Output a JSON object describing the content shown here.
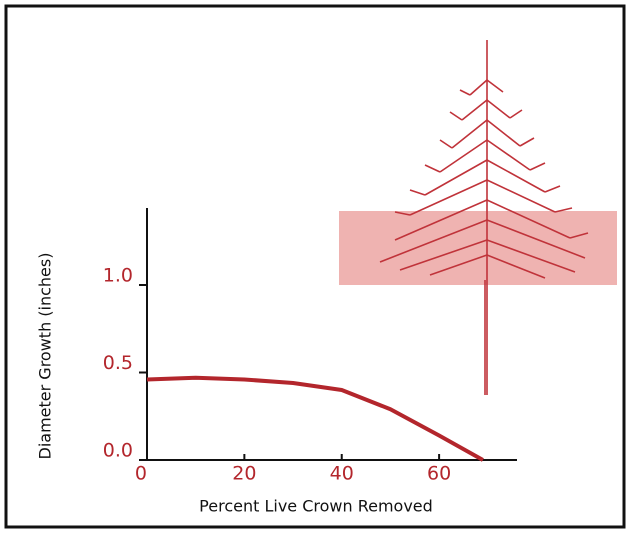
{
  "chart_data": {
    "type": "line",
    "xlabel": "Percent Live Crown Removed",
    "ylabel": "Diameter Growth (inches)",
    "x": [
      0,
      10,
      20,
      30,
      40,
      50,
      60,
      69
    ],
    "series": [
      {
        "color": "#b3262c",
        "values": [
          0.46,
          0.47,
          0.46,
          0.44,
          0.4,
          0.29,
          0.14,
          0
        ]
      }
    ],
    "xlim": [
      0,
      76
    ],
    "ylim": [
      0,
      1.44
    ],
    "xticks": [
      0,
      20,
      40,
      60
    ],
    "yticks": [
      {
        "value": 0,
        "label": "0.0"
      },
      0.5,
      {
        "value": 1,
        "label": "1.0"
      }
    ]
  }
}
